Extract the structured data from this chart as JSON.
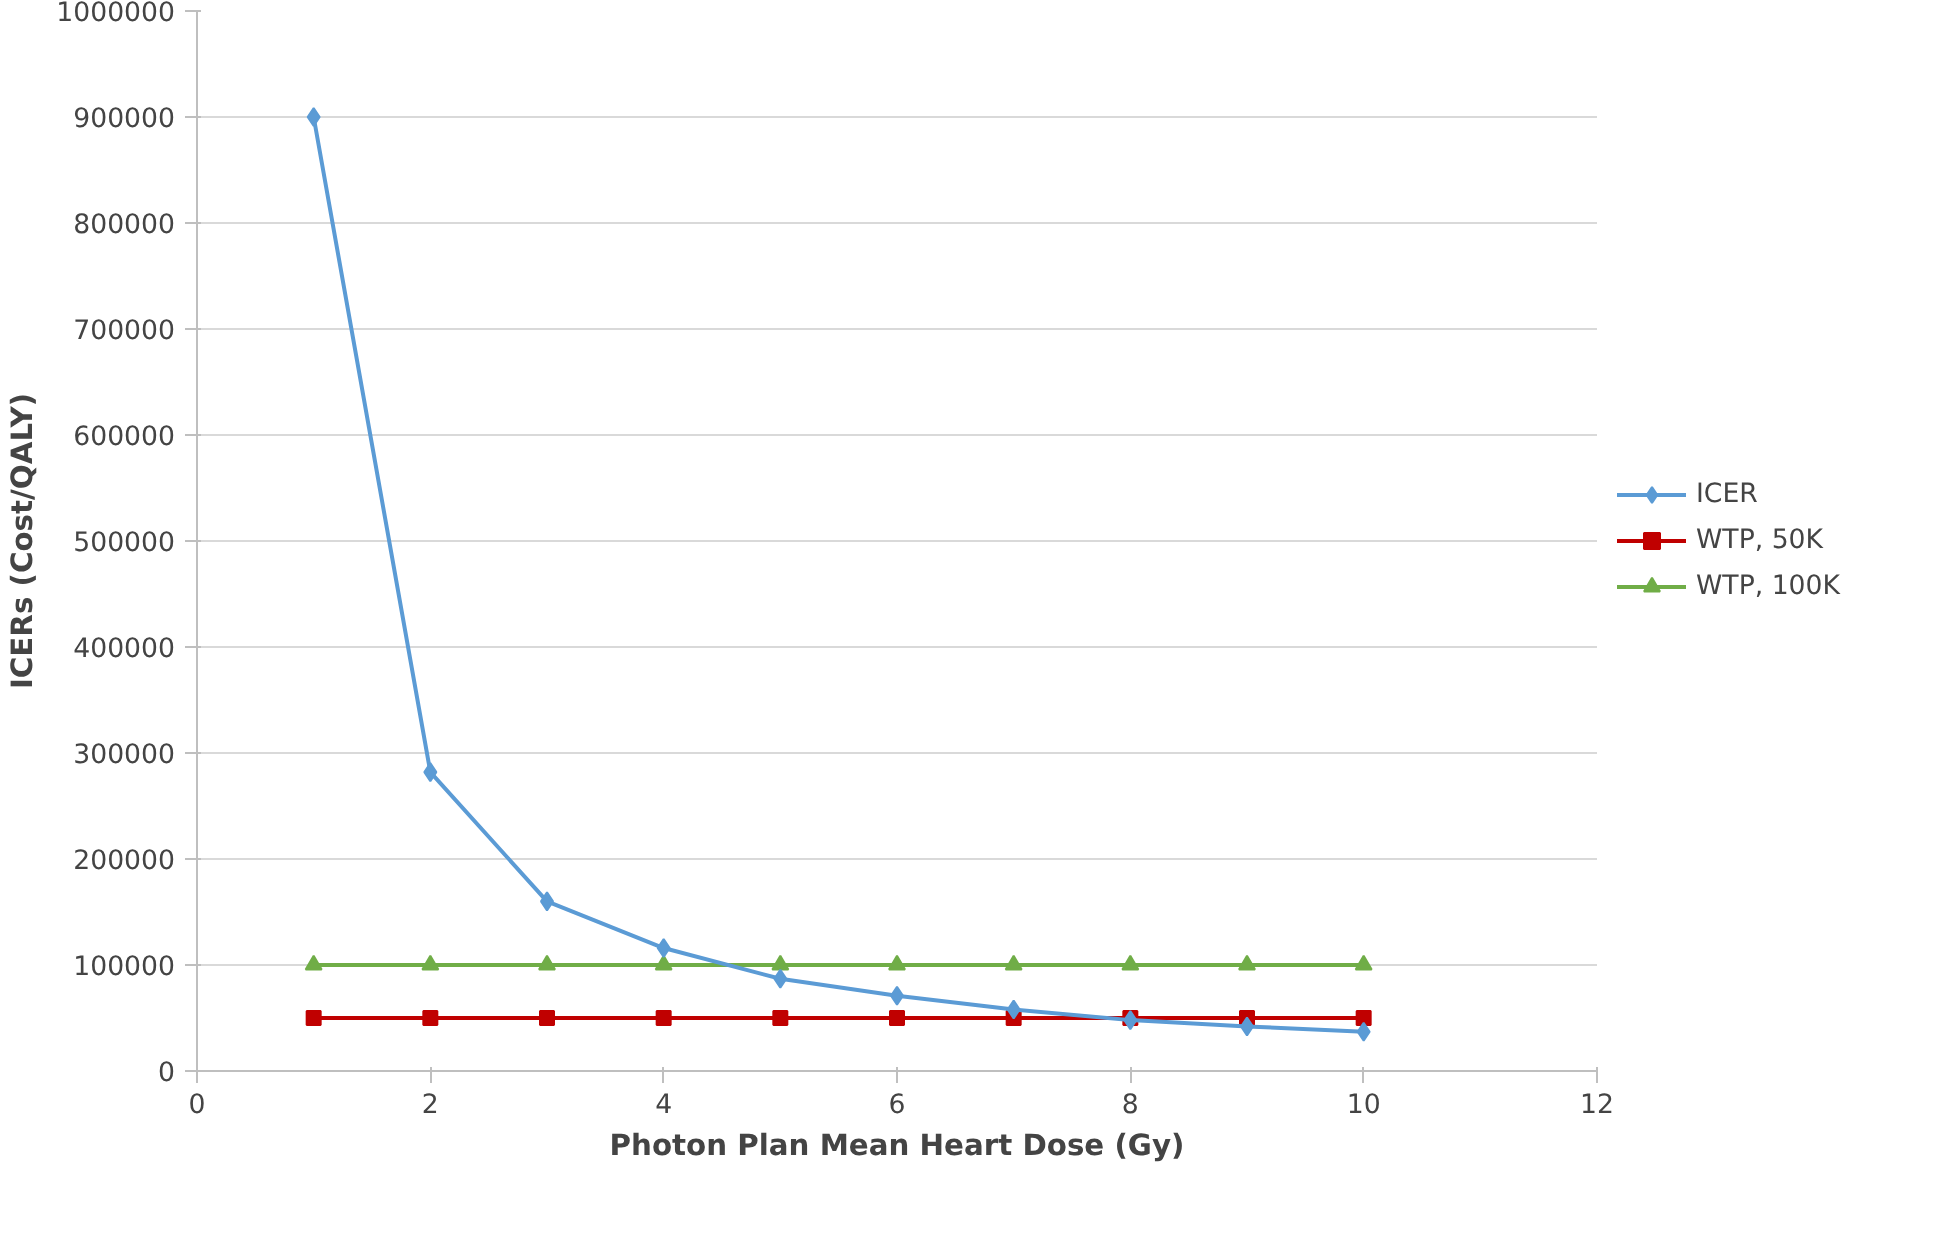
{
  "chart_data": {
    "type": "line",
    "xlabel": "Photon Plan Mean Heart Dose (Gy)",
    "ylabel": "ICERs (Cost/QALY)",
    "x": [
      1,
      2,
      3,
      4,
      5,
      6,
      7,
      8,
      9,
      10
    ],
    "series": [
      {
        "name": "ICER",
        "color": "#5b9bd5",
        "marker": "diamond",
        "values": [
          900000,
          282000,
          160000,
          116000,
          87000,
          71000,
          58000,
          48000,
          42000,
          37000
        ]
      },
      {
        "name": "WTP, 50K",
        "color": "#c00000",
        "marker": "square",
        "values": [
          50000,
          50000,
          50000,
          50000,
          50000,
          50000,
          50000,
          50000,
          50000,
          50000
        ]
      },
      {
        "name": "WTP, 100K",
        "color": "#70ad47",
        "marker": "triangle",
        "values": [
          100000,
          100000,
          100000,
          100000,
          100000,
          100000,
          100000,
          100000,
          100000,
          100000
        ]
      }
    ],
    "xlim": [
      0,
      12
    ],
    "xticks": [
      0,
      2,
      4,
      6,
      8,
      10,
      12
    ],
    "ylim": [
      0,
      1000000
    ],
    "yticks": [
      0,
      100000,
      200000,
      300000,
      400000,
      500000,
      600000,
      700000,
      800000,
      900000,
      1000000
    ],
    "grid": "y",
    "legend": "right",
    "line_style": "solid"
  }
}
